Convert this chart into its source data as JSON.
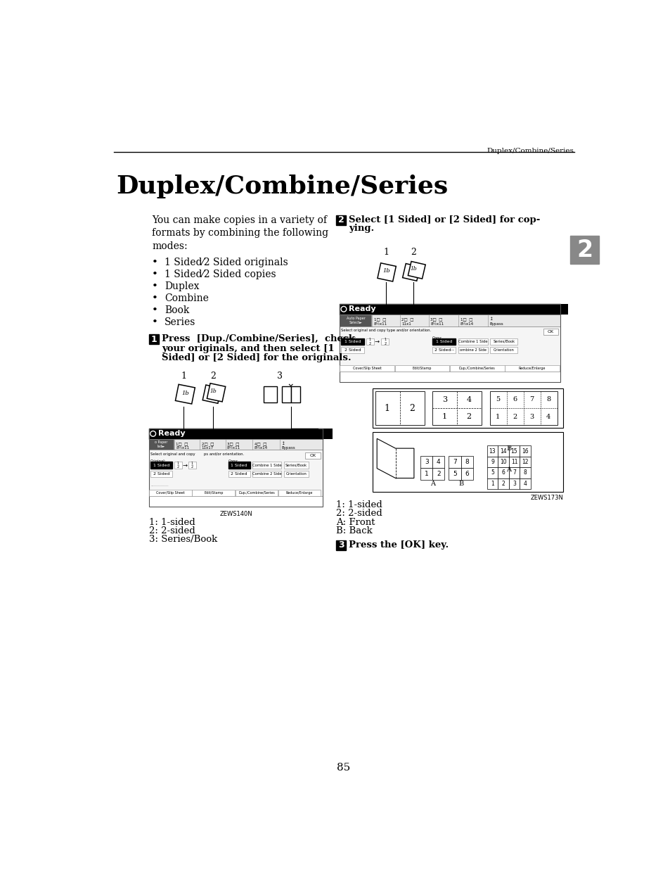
{
  "page_bg": "#ffffff",
  "header_text": "Duplex/Combine/Series",
  "title": "Duplex/Combine/Series",
  "body_text": "You can make copies in a variety of\nformats by combining the following\nmodes:",
  "bullets": [
    "1 Sided⁄2 Sided originals",
    "1 Sided⁄2 Sided copies",
    "Duplex",
    "Combine",
    "Book",
    "Series"
  ],
  "step1_text": "Press  [Dup./Combine/Series],  check\nyour originals, and then select [1\nSided] or [2 Sided] for the originals.",
  "step2_text": "Select [1 Sided] or [2 Sided] for cop-\nying.",
  "step3_text": "Press the [OK] key.",
  "caption1": [
    "1: 1-sided",
    "2: 2-sided",
    "3: Series/Book"
  ],
  "caption2": [
    "1: 1-sided",
    "2: 2-sided",
    "A: Front",
    "B: Back"
  ],
  "zews1": "ZEWS140N",
  "zews2": "ZEWS173N",
  "tab_num": "2",
  "page_number": "85",
  "col_divider": 450
}
